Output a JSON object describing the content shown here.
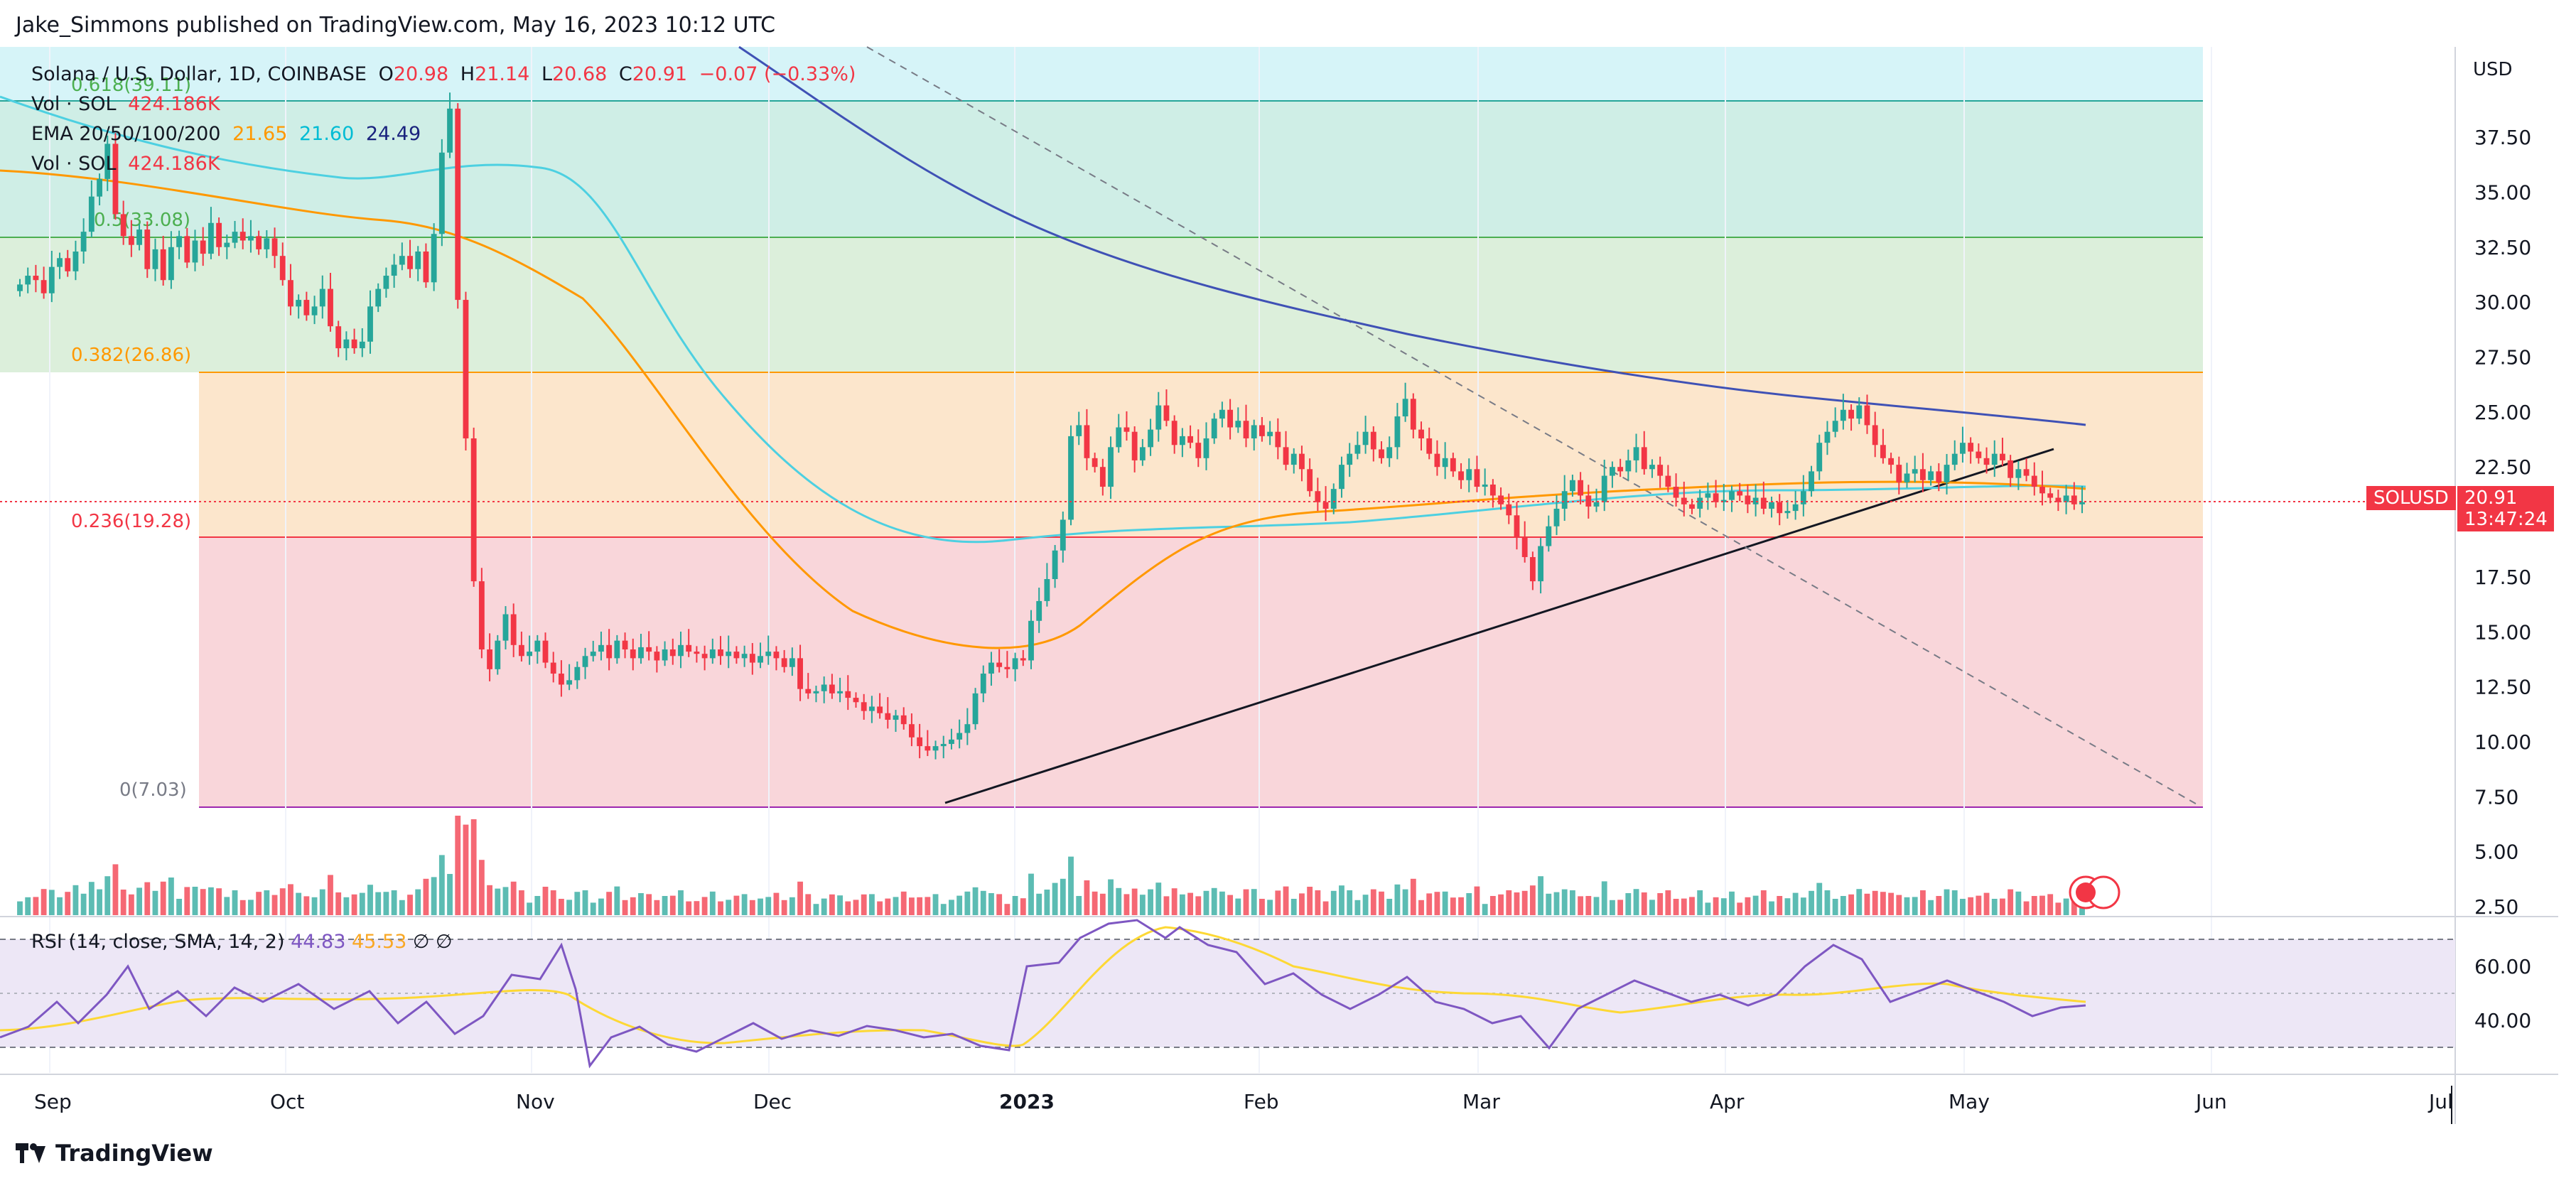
{
  "header": {
    "publisher": "Jake_Simmons published on TradingView.com, May 16, 2023 10:12 UTC"
  },
  "legend": {
    "symbol": "Solana / U.S. Dollar, 1D, COINBASE",
    "o_label": "O",
    "o": "20.98",
    "h_label": "H",
    "h": "21.14",
    "l_label": "L",
    "l": "20.68",
    "c_label": "C",
    "c": "20.91",
    "change": "−0.07 (−0.33%)",
    "vol1_label": "Vol · SOL",
    "vol1": "424.186K",
    "ema_label": "EMA 20/50/100/200",
    "ema20": "21.65",
    "ema50": "21.60",
    "ema100": "24.49",
    "vol2_label": "Vol · SOL",
    "vol2": "424.186K"
  },
  "rsi_legend": {
    "label": "RSI (14, close, SMA, 14, 2)",
    "rsi": "44.83",
    "sma": "45.53",
    "sym1": "∅",
    "sym2": "∅"
  },
  "price_badge": {
    "symbol": "SOLUSD",
    "price": "20.91",
    "countdown": "13:47:24"
  },
  "footer": {
    "brand": "TradingView"
  },
  "colors": {
    "up": "#26a69a",
    "down": "#f23645",
    "ema20": "#ff9800",
    "ema50": "#4dd0e1",
    "ema100": "#3f51b5",
    "rsi": "#7e57c2",
    "rsi_sma": "#ffeb3b"
  },
  "chart_data": {
    "type": "candlestick",
    "currency": "USD",
    "y_ticks": [
      "37.50",
      "35.00",
      "32.50",
      "30.00",
      "27.50",
      "25.00",
      "22.50",
      "20.00",
      "17.50",
      "15.00",
      "12.50",
      "10.00",
      "7.50",
      "5.00",
      "2.50"
    ],
    "ylim": [
      2.5,
      37.5
    ],
    "x_ticks": [
      "Sep",
      "Oct",
      "Nov",
      "Dec",
      "2023",
      "Feb",
      "Mar",
      "Apr",
      "May",
      "Jun",
      "Jul"
    ],
    "fib_levels": [
      {
        "label": "0.618(39.11)",
        "value": 39.11,
        "color": "#4caf50"
      },
      {
        "label": "0.5(33.08)",
        "value": 33.08,
        "color": "#4caf50"
      },
      {
        "label": "0.382(26.86)",
        "value": 26.86,
        "color": "#ff9800"
      },
      {
        "label": "0.236(19.28)",
        "value": 19.28,
        "color": "#f23645"
      },
      {
        "label": "0(7.03)",
        "value": 7.03,
        "color": "#787b86"
      }
    ],
    "closes": [
      30.8,
      31.2,
      31.0,
      30.4,
      31.6,
      32.0,
      31.4,
      32.3,
      33.2,
      34.8,
      35.6,
      37.2,
      34.0,
      33.0,
      32.6,
      33.3,
      31.5,
      32.4,
      31.0,
      32.5,
      33.0,
      31.8,
      32.8,
      32.2,
      33.6,
      32.5,
      32.7,
      33.2,
      32.8,
      33.0,
      32.4,
      32.9,
      32.1,
      31.0,
      29.8,
      30.1,
      29.4,
      29.8,
      30.6,
      28.9,
      27.9,
      28.3,
      27.9,
      28.2,
      29.8,
      30.6,
      31.2,
      31.7,
      32.1,
      31.5,
      32.3,
      30.9,
      33.1,
      36.8,
      38.8,
      30.1,
      23.8,
      17.3,
      14.2,
      13.3,
      14.6,
      15.8,
      14.4,
      13.9,
      14.1,
      14.6,
      13.6,
      13.1,
      12.6,
      12.8,
      13.4,
      13.9,
      14.1,
      14.4,
      13.8,
      14.6,
      14.2,
      13.8,
      14.3,
      14.1,
      13.7,
      14.2,
      13.9,
      14.4,
      14.1,
      14.0,
      13.8,
      14.2,
      13.9,
      14.1,
      13.8,
      14.0,
      13.6,
      13.9,
      14.1,
      13.8,
      13.4,
      13.8,
      12.4,
      12.2,
      12.3,
      12.6,
      12.2,
      12.3,
      12.0,
      11.8,
      11.4,
      11.6,
      11.3,
      11.0,
      11.2,
      10.8,
      10.2,
      9.8,
      9.6,
      9.8,
      9.9,
      10.1,
      10.4,
      10.8,
      12.2,
      13.1,
      13.6,
      13.4,
      13.3,
      13.8,
      13.7,
      15.5,
      16.4,
      17.4,
      18.7,
      20.1,
      23.9,
      24.4,
      22.9,
      22.5,
      21.6,
      23.4,
      24.3,
      24.1,
      22.8,
      23.4,
      24.2,
      25.3,
      24.6,
      23.5,
      23.9,
      23.6,
      22.9,
      23.8,
      24.7,
      25.1,
      24.3,
      24.6,
      23.8,
      24.4,
      23.9,
      24.1,
      23.4,
      22.6,
      23.1,
      22.4,
      21.4,
      20.9,
      20.6,
      21.5,
      22.6,
      23.1,
      23.5,
      24.1,
      23.3,
      22.9,
      23.4,
      24.8,
      25.6,
      24.2,
      23.8,
      23.1,
      22.5,
      22.9,
      22.3,
      21.9,
      22.4,
      21.6,
      21.7,
      21.2,
      20.8,
      20.3,
      19.3,
      18.4,
      17.3,
      18.9,
      19.8,
      20.6,
      21.4,
      21.9,
      21.2,
      20.7,
      20.9,
      22.1,
      22.5,
      22.3,
      22.8,
      23.4,
      22.4,
      22.6,
      22.1,
      21.6,
      21.1,
      20.8,
      20.6,
      21.1,
      21.3,
      20.9,
      21.0,
      21.4,
      21.2,
      20.8,
      21.1,
      20.6,
      20.9,
      20.4,
      20.5,
      20.8,
      21.4,
      22.3,
      23.6,
      24.1,
      24.6,
      25.1,
      24.7,
      25.3,
      24.4,
      23.5,
      22.9,
      22.6,
      21.8,
      22.2,
      22.4,
      21.9,
      22.3,
      21.8,
      22.6,
      23.1,
      23.6,
      23.2,
      22.9,
      22.6,
      23.1,
      22.8,
      22.0,
      22.4,
      22.1,
      21.6,
      21.3,
      21.1,
      20.9,
      21.2,
      20.8,
      20.9
    ]
  }
}
